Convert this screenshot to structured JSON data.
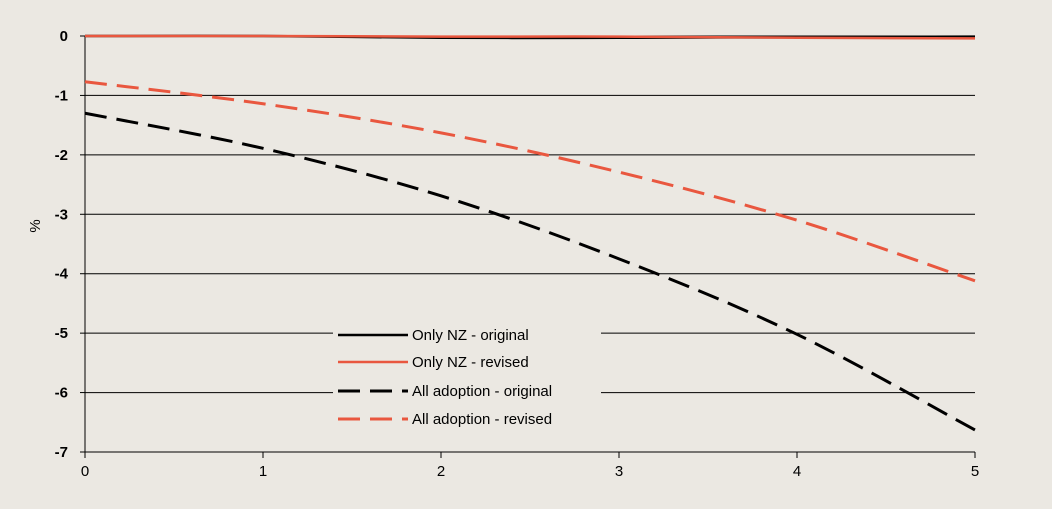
{
  "chart_data": {
    "type": "line",
    "title": "",
    "xlabel": "",
    "ylabel": "%",
    "x": [
      0,
      1,
      2,
      3,
      4,
      5
    ],
    "x_ticks": [
      0,
      1,
      2,
      3,
      4,
      5
    ],
    "y_ticks": [
      0,
      -1,
      -2,
      -3,
      -4,
      -5,
      -6,
      -7
    ],
    "xlim": [
      0,
      5
    ],
    "ylim": [
      -7,
      0
    ],
    "grid": true,
    "legend": "bottom-center",
    "series": [
      {
        "name": "Only NZ - original",
        "values": [
          0,
          0,
          -0.03,
          -0.03,
          -0.02,
          -0.01
        ],
        "color": "#000000",
        "style": "solid"
      },
      {
        "name": "Only NZ - revised",
        "values": [
          0,
          0,
          -0.01,
          -0.01,
          -0.03,
          -0.04
        ],
        "color": "#e9573f",
        "style": "solid"
      },
      {
        "name": "All adoption - original",
        "values": [
          -1.3,
          -1.89,
          -2.69,
          -3.75,
          -5.02,
          -6.63
        ],
        "color": "#000000",
        "style": "dashed"
      },
      {
        "name": "All adoption - revised",
        "values": [
          -0.77,
          -1.14,
          -1.63,
          -2.29,
          -3.1,
          -4.12
        ],
        "color": "#e9573f",
        "style": "dashed"
      }
    ]
  },
  "colors": {
    "background": "#ebe8e2",
    "grid": "#000000"
  }
}
